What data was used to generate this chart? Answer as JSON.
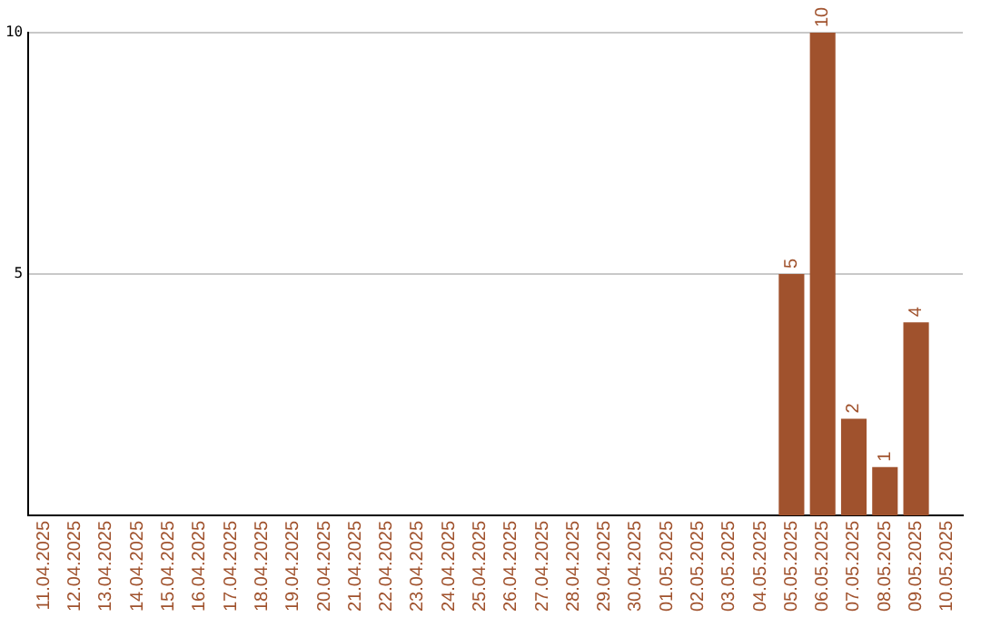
{
  "chart_data": {
    "type": "bar",
    "categories": [
      "11.04.2025",
      "12.04.2025",
      "13.04.2025",
      "14.04.2025",
      "15.04.2025",
      "16.04.2025",
      "17.04.2025",
      "18.04.2025",
      "19.04.2025",
      "20.04.2025",
      "21.04.2025",
      "22.04.2025",
      "23.04.2025",
      "24.04.2025",
      "25.04.2025",
      "26.04.2025",
      "27.04.2025",
      "28.04.2025",
      "29.04.2025",
      "30.04.2025",
      "01.05.2025",
      "02.05.2025",
      "03.05.2025",
      "04.05.2025",
      "05.05.2025",
      "06.05.2025",
      "07.05.2025",
      "08.05.2025",
      "09.05.2025",
      "10.05.2025"
    ],
    "values": [
      0,
      0,
      0,
      0,
      0,
      0,
      0,
      0,
      0,
      0,
      0,
      0,
      0,
      0,
      0,
      0,
      0,
      0,
      0,
      0,
      0,
      0,
      0,
      0,
      5,
      10,
      2,
      1,
      4,
      0
    ],
    "value_labels": [
      null,
      null,
      null,
      null,
      null,
      null,
      null,
      null,
      null,
      null,
      null,
      null,
      null,
      null,
      null,
      null,
      null,
      null,
      null,
      null,
      null,
      null,
      null,
      null,
      "5",
      "10",
      "2",
      "1",
      "4",
      null
    ],
    "color": "#a0522d",
    "ylim": [
      0,
      10
    ],
    "yticks": [
      5,
      10
    ],
    "grid": "y",
    "legend": false
  }
}
